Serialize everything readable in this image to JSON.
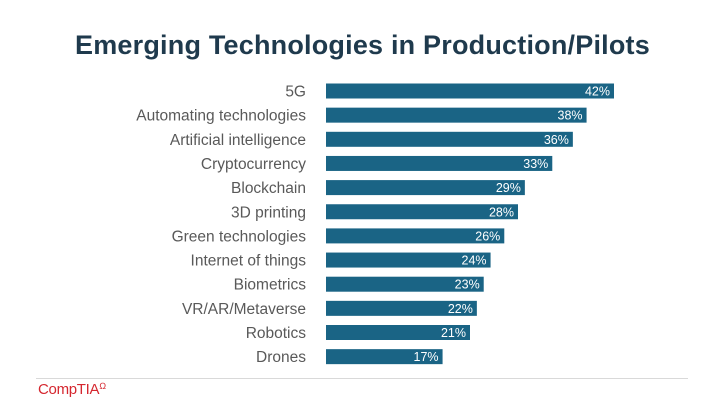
{
  "title": "Emerging Technologies in Production/Pilots",
  "logo": {
    "text": "CompTIA",
    "mark": "Ω"
  },
  "colors": {
    "bar": "#1a6485",
    "title": "#1f3a4d",
    "logo": "#d5272f"
  },
  "chart_data": {
    "type": "bar",
    "orientation": "horizontal",
    "title": "Emerging Technologies in Production/Pilots",
    "categories": [
      "5G",
      "Automating technologies",
      "Artificial intelligence",
      "Cryptocurrency",
      "Blockchain",
      "3D printing",
      "Green technologies",
      "Internet of things",
      "Biometrics",
      "VR/AR/Metaverse",
      "Robotics",
      "Drones"
    ],
    "values": [
      42,
      38,
      36,
      33,
      29,
      28,
      26,
      24,
      23,
      22,
      21,
      17
    ],
    "value_labels": [
      "42%",
      "38%",
      "36%",
      "33%",
      "29%",
      "28%",
      "26%",
      "24%",
      "23%",
      "22%",
      "21%",
      "17%"
    ],
    "xlim": [
      0,
      42
    ],
    "xlabel": "",
    "ylabel": "",
    "grid": false,
    "legend": "none"
  }
}
